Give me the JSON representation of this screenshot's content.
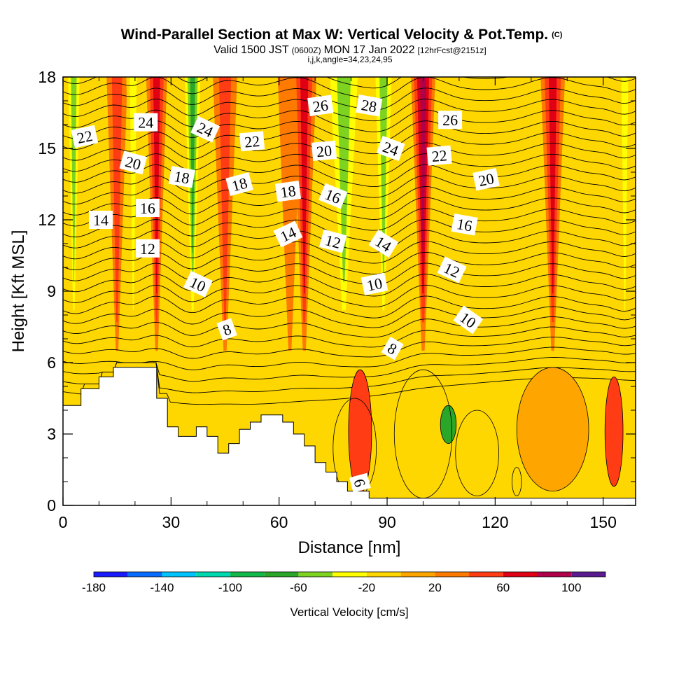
{
  "header": {
    "title_main": "Wind-Parallel Section at Max W: Vertical Velocity & Pot.Temp.",
    "title_mark": "(C)",
    "valid_a": "Valid 1500 JST",
    "valid_b": "(0600Z)",
    "valid_c": "MON 17 Jan 2022",
    "valid_d": "[12hrFcst@2151z]",
    "params": "i,j,k,angle=34,23,24,95"
  },
  "chart_data": {
    "type": "contour-section",
    "xlabel": "Distance [nm]",
    "ylabel": "Height [Kft MSL]",
    "xlim": [
      0,
      159
    ],
    "ylim": [
      0,
      18
    ],
    "xticks": [
      "0",
      "30",
      "60",
      "90",
      "120",
      "150"
    ],
    "yticks": [
      "0",
      "3",
      "6",
      "9",
      "12",
      "15",
      "18"
    ],
    "colorbar": {
      "title": "Vertical Velocity [cm/s]",
      "bounds": [
        -180,
        -160,
        -140,
        -120,
        -100,
        -80,
        -60,
        -40,
        -20,
        0,
        20,
        40,
        60,
        80,
        100,
        120
      ],
      "tick_labels": [
        "-180",
        "-140",
        "-100",
        "-60",
        "-20",
        "20",
        "60",
        "100"
      ],
      "colors": [
        "#1a1aff",
        "#0a6cff",
        "#00c4ff",
        "#00d9b0",
        "#12b84a",
        "#2aa628",
        "#7ed321",
        "#ffff00",
        "#ffd700",
        "#ffa500",
        "#ff7a00",
        "#ff3c14",
        "#e00014",
        "#b0004a",
        "#5a1a90"
      ]
    },
    "terrain": [
      [
        0,
        4.2
      ],
      [
        5,
        4.2
      ],
      [
        5,
        4.9
      ],
      [
        10,
        4.9
      ],
      [
        10,
        5.4
      ],
      [
        14,
        5.4
      ],
      [
        14,
        5.8
      ],
      [
        26,
        5.8
      ],
      [
        26,
        4.5
      ],
      [
        29,
        4.5
      ],
      [
        29,
        3.3
      ],
      [
        32,
        3.3
      ],
      [
        32,
        2.9
      ],
      [
        37,
        2.9
      ],
      [
        37,
        3.3
      ],
      [
        40,
        3.3
      ],
      [
        40,
        2.9
      ],
      [
        43,
        2.9
      ],
      [
        43,
        2.2
      ],
      [
        46,
        2.2
      ],
      [
        46,
        2.6
      ],
      [
        49,
        2.6
      ],
      [
        49,
        3.2
      ],
      [
        52,
        3.2
      ],
      [
        52,
        3.5
      ],
      [
        55,
        3.5
      ],
      [
        55,
        3.8
      ],
      [
        61,
        3.8
      ],
      [
        61,
        3.5
      ],
      [
        64,
        3.5
      ],
      [
        64,
        3.0
      ],
      [
        67,
        3.0
      ],
      [
        67,
        2.5
      ],
      [
        70,
        2.5
      ],
      [
        70,
        1.8
      ],
      [
        73,
        1.8
      ],
      [
        73,
        1.4
      ],
      [
        76,
        1.4
      ],
      [
        76,
        1.0
      ],
      [
        79,
        1.0
      ],
      [
        79,
        0.6
      ],
      [
        85,
        0.6
      ],
      [
        85,
        0.3
      ],
      [
        159,
        0.3
      ]
    ],
    "wvel_bands": [
      {
        "x": 3,
        "w": 2.5,
        "v": -70
      },
      {
        "x": 10,
        "w": 3,
        "v": -25
      },
      {
        "x": 15,
        "w": 3,
        "v": 40
      },
      {
        "x": 19.5,
        "w": 2,
        "v": -55
      },
      {
        "x": 26,
        "w": 3,
        "v": 70
      },
      {
        "x": 36,
        "w": 3,
        "v": -90
      },
      {
        "x": 45,
        "w": 3.5,
        "v": 55
      },
      {
        "x": 53,
        "w": 4,
        "v": -25
      },
      {
        "x": 63,
        "w": 3.5,
        "v": 25
      },
      {
        "x": 67,
        "w": 3.5,
        "v": 65
      },
      {
        "x": 78,
        "w": 6,
        "v": -70
      },
      {
        "x": 89,
        "w": 3.5,
        "v": -75
      },
      {
        "x": 100,
        "w": 3.5,
        "v": 80
      },
      {
        "x": 112,
        "w": 5,
        "v": -30
      },
      {
        "x": 122,
        "w": 4,
        "v": -20
      },
      {
        "x": 136,
        "w": 3.5,
        "v": 60
      },
      {
        "x": 146,
        "w": 4,
        "v": -15
      },
      {
        "x": 156,
        "w": 2,
        "v": -55
      }
    ],
    "theta_labels": [
      {
        "text": "22",
        "x": 6,
        "y": 15.5,
        "rot": -12
      },
      {
        "text": "24",
        "x": 23,
        "y": 16.1,
        "rot": 0
      },
      {
        "text": "24",
        "x": 39.5,
        "y": 15.8,
        "rot": 25
      },
      {
        "text": "22",
        "x": 52.5,
        "y": 15.3,
        "rot": -5
      },
      {
        "text": "26",
        "x": 71.5,
        "y": 16.8,
        "rot": -8
      },
      {
        "text": "28",
        "x": 85,
        "y": 16.8,
        "rot": 10
      },
      {
        "text": "26",
        "x": 107.5,
        "y": 16.2,
        "rot": 0
      },
      {
        "text": "20",
        "x": 19.5,
        "y": 14.4,
        "rot": 15
      },
      {
        "text": "18",
        "x": 33,
        "y": 13.8,
        "rot": 10
      },
      {
        "text": "20",
        "x": 72.5,
        "y": 14.9,
        "rot": -5
      },
      {
        "text": "24",
        "x": 91,
        "y": 15.0,
        "rot": 20
      },
      {
        "text": "22",
        "x": 104.5,
        "y": 14.7,
        "rot": -5
      },
      {
        "text": "20",
        "x": 117.5,
        "y": 13.7,
        "rot": -12
      },
      {
        "text": "18",
        "x": 49,
        "y": 13.5,
        "rot": -15
      },
      {
        "text": "18",
        "x": 62.5,
        "y": 13.2,
        "rot": -8
      },
      {
        "text": "16",
        "x": 75,
        "y": 13.0,
        "rot": 22
      },
      {
        "text": "16",
        "x": 23.5,
        "y": 12.5,
        "rot": 0
      },
      {
        "text": "14",
        "x": 10.5,
        "y": 12.0,
        "rot": 0
      },
      {
        "text": "16",
        "x": 111.5,
        "y": 11.8,
        "rot": 10
      },
      {
        "text": "14",
        "x": 62.5,
        "y": 11.4,
        "rot": -25
      },
      {
        "text": "12",
        "x": 75,
        "y": 11.1,
        "rot": 15
      },
      {
        "text": "14",
        "x": 89,
        "y": 11.0,
        "rot": 32
      },
      {
        "text": "12",
        "x": 23.5,
        "y": 10.8,
        "rot": 0
      },
      {
        "text": "12",
        "x": 108,
        "y": 9.9,
        "rot": 25
      },
      {
        "text": "10",
        "x": 37.5,
        "y": 9.3,
        "rot": 25
      },
      {
        "text": "10",
        "x": 86.5,
        "y": 9.3,
        "rot": -12
      },
      {
        "text": "10",
        "x": 112.5,
        "y": 7.8,
        "rot": 35
      },
      {
        "text": "8",
        "x": 45.5,
        "y": 7.4,
        "rot": -20
      },
      {
        "text": "8",
        "x": 91.5,
        "y": 6.6,
        "rot": 30
      },
      {
        "text": "6",
        "x": 82.5,
        "y": 0.95,
        "rot": 75
      }
    ]
  }
}
